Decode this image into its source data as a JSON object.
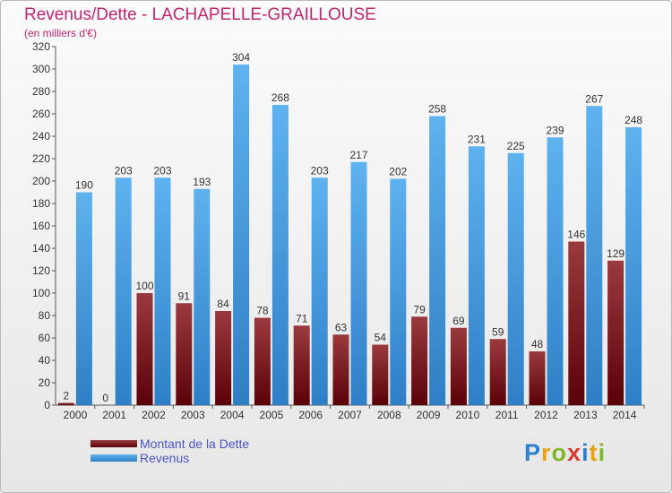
{
  "title": "Revenus/Dette - LACHAPELLE-GRAILLOUSE",
  "subtitle": "(en milliers d'€)",
  "legend": {
    "items": [
      {
        "label": "Montant de la Dette",
        "color": "#7a1015"
      },
      {
        "label": "Revenus",
        "color": "#4ea3e4"
      }
    ]
  },
  "logo": {
    "text": "Proxiti",
    "letters": [
      {
        "ch": "P",
        "color": "#2f7fd1"
      },
      {
        "ch": "r",
        "color": "#e8a21a"
      },
      {
        "ch": "o",
        "color": "#7fb728"
      },
      {
        "ch": "x",
        "color": "#d63c2f"
      },
      {
        "ch": "i",
        "color": "#2f7fd1"
      },
      {
        "ch": "t",
        "color": "#e8a21a"
      },
      {
        "ch": "i",
        "color": "#7fb728"
      }
    ]
  },
  "chart_data": {
    "type": "bar",
    "categories": [
      "2000",
      "2001",
      "2002",
      "2003",
      "2004",
      "2005",
      "2006",
      "2007",
      "2008",
      "2009",
      "2010",
      "2011",
      "2012",
      "2013",
      "2014"
    ],
    "series": [
      {
        "name": "Montant de la Dette",
        "color": "#7a1015",
        "values": [
          2,
          0,
          100,
          91,
          84,
          78,
          71,
          63,
          54,
          79,
          69,
          59,
          48,
          146,
          129
        ]
      },
      {
        "name": "Revenus",
        "color": "#4ea3e4",
        "values": [
          190,
          203,
          203,
          193,
          304,
          268,
          203,
          217,
          202,
          258,
          231,
          225,
          239,
          267,
          248
        ]
      }
    ],
    "ylim": [
      0,
      320
    ],
    "yticks": [
      0,
      20,
      40,
      60,
      80,
      100,
      120,
      140,
      160,
      180,
      200,
      220,
      240,
      260,
      280,
      300,
      320
    ],
    "grid": false,
    "legend_position": "bottom-left"
  }
}
